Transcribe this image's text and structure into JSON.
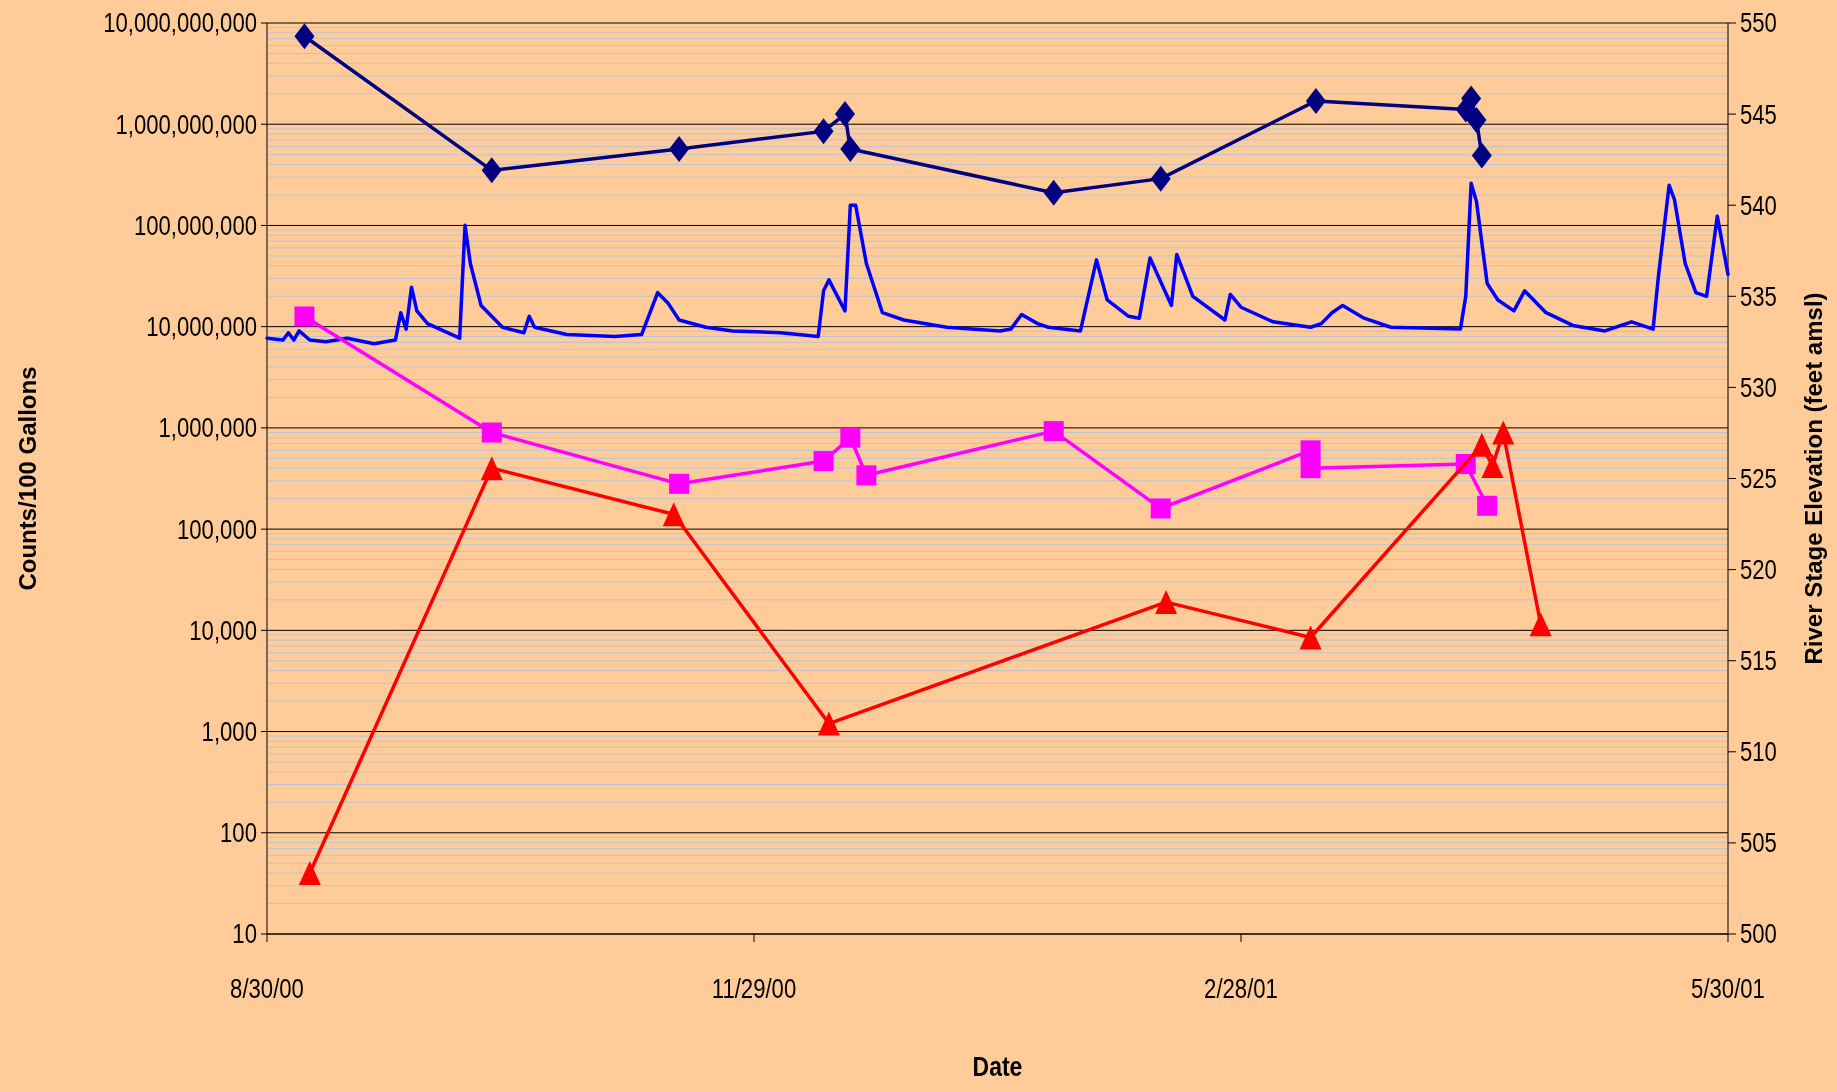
{
  "chart_data": {
    "type": "line",
    "xlabel": "Date",
    "ylabel": "Counts/100 Gallons",
    "y2label": "River Stage Elevation (feet amsl)",
    "log": "y",
    "grid": true,
    "xlim": [
      "2000-08-30",
      "2001-05-30"
    ],
    "xticks": [
      {
        "value": "2000-08-30",
        "label": "8/30/00"
      },
      {
        "value": "2000-11-29",
        "label": "11/29/00"
      },
      {
        "value": "2001-02-28",
        "label": "2/28/01"
      },
      {
        "value": "2001-05-30",
        "label": "5/30/01"
      }
    ],
    "ylim": [
      10,
      10000000000
    ],
    "yticks": [
      10,
      100,
      {
        "value": 1000,
        "label": "1,000"
      },
      {
        "value": 10000,
        "label": "10,000"
      },
      {
        "value": 100000,
        "label": "100,000"
      },
      {
        "value": 1000000,
        "label": "1,000,000"
      },
      {
        "value": 10000000,
        "label": "10,000,000"
      },
      {
        "value": 100000000,
        "label": "100,000,000"
      },
      {
        "value": 1000000000,
        "label": "1,000,000,000"
      },
      {
        "value": 10000000000,
        "label": "10,000,000,000"
      }
    ],
    "y2lim": [
      500,
      550
    ],
    "y2ticks": [
      500,
      505,
      510,
      515,
      520,
      525,
      530,
      535,
      540,
      545,
      550
    ],
    "series": [
      {
        "color": "#0000ff",
        "axis": "y2",
        "marker": "none",
        "x": [
          "2000-08-30",
          "2000-09-02",
          "2000-09-03",
          "2000-09-04",
          "2000-09-05",
          "2000-09-07",
          "2000-09-10",
          "2000-09-14",
          "2000-09-19",
          "2000-09-23",
          "2000-09-24",
          "2000-09-25",
          "2000-09-26",
          "2000-09-27",
          "2000-09-29",
          "2000-10-02",
          "2000-10-05",
          "2000-10-06",
          "2000-10-07",
          "2000-10-09",
          "2000-10-13",
          "2000-10-17",
          "2000-10-18",
          "2000-10-19",
          "2000-10-25",
          "2000-11-03",
          "2000-11-08",
          "2000-11-11",
          "2000-11-13",
          "2000-11-15",
          "2000-11-20",
          "2000-11-25",
          "2000-12-04",
          "2000-12-11",
          "2000-12-12",
          "2000-12-13",
          "2000-12-16",
          "2000-12-17",
          "2000-12-18",
          "2000-12-20",
          "2000-12-23",
          "2000-12-27",
          "2001-01-04",
          "2001-01-14",
          "2001-01-16",
          "2001-01-18",
          "2001-01-21",
          "2001-01-23",
          "2001-01-29",
          "2001-02-01",
          "2001-02-03",
          "2001-02-07",
          "2001-02-09",
          "2001-02-11",
          "2001-02-15",
          "2001-02-16",
          "2001-02-19",
          "2001-02-25",
          "2001-02-26",
          "2001-02-28",
          "2001-03-06",
          "2001-03-13",
          "2001-03-15",
          "2001-03-17",
          "2001-03-19",
          "2001-03-23",
          "2001-03-28",
          "2001-04-10",
          "2001-04-11",
          "2001-04-12",
          "2001-04-13",
          "2001-04-15",
          "2001-04-17",
          "2001-04-20",
          "2001-04-22",
          "2001-04-26",
          "2001-05-01",
          "2001-05-07",
          "2001-05-12",
          "2001-05-16",
          "2001-05-17",
          "2001-05-19",
          "2001-05-20",
          "2001-05-22",
          "2001-05-24",
          "2001-05-26",
          "2001-05-28",
          "2001-05-30"
        ],
        "values": [
          532.7,
          532.6,
          533.0,
          532.6,
          533.1,
          532.6,
          532.5,
          532.7,
          532.4,
          532.6,
          534.1,
          533.2,
          535.5,
          534.2,
          533.5,
          533.1,
          532.7,
          538.9,
          536.8,
          534.5,
          533.3,
          533.0,
          533.9,
          533.3,
          532.9,
          532.8,
          532.9,
          535.2,
          534.6,
          533.7,
          533.3,
          533.1,
          533.0,
          532.8,
          535.3,
          535.9,
          534.2,
          540.0,
          540.0,
          536.8,
          534.1,
          533.7,
          533.3,
          533.1,
          533.2,
          534.0,
          533.5,
          533.3,
          533.1,
          537.0,
          534.8,
          533.9,
          533.8,
          537.1,
          534.5,
          537.3,
          535.0,
          533.7,
          535.1,
          534.4,
          533.6,
          533.3,
          533.5,
          534.1,
          534.5,
          533.8,
          533.3,
          533.2,
          535.0,
          541.2,
          540.2,
          535.7,
          534.8,
          534.2,
          535.3,
          534.1,
          533.4,
          533.1,
          533.6,
          533.2,
          536.1,
          541.1,
          540.3,
          536.8,
          535.2,
          535.0,
          539.4,
          536.2
        ]
      },
      {
        "color": "#000080",
        "marker": "diamond",
        "x": [
          "2000-09-06",
          "2000-10-11",
          "2000-11-15",
          "2000-12-12",
          "2000-12-16",
          "2000-12-17",
          "2001-01-24",
          "2001-02-13",
          "2001-03-14",
          "2001-04-11",
          "2001-04-12",
          "2001-04-13",
          "2001-04-14"
        ],
        "values": [
          7400000000,
          350000000,
          570000000,
          850000000,
          1260000000,
          570000000,
          210000000,
          290000000,
          1700000000,
          1400000000,
          1800000000,
          1100000000,
          490000000
        ]
      },
      {
        "color": "#ff00ff",
        "marker": "square",
        "x": [
          "2000-09-06",
          "2000-10-11",
          "2000-11-15",
          "2000-12-12",
          "2000-12-17",
          "2000-12-20",
          "2001-01-24",
          "2001-02-13",
          "2001-03-13",
          "2001-03-13",
          "2001-04-11",
          "2001-04-15"
        ],
        "values": [
          12600000,
          900000,
          280000,
          470000,
          800000,
          340000,
          930000,
          160000,
          600000,
          400000,
          440000,
          170000
        ]
      },
      {
        "color": "#ff0000",
        "marker": "triangle",
        "x": [
          "2000-09-07",
          "2000-10-11",
          "2000-11-14",
          "2000-12-13",
          "2001-02-14",
          "2001-03-13",
          "2001-04-14",
          "2001-04-16",
          "2001-04-18",
          "2001-04-25"
        ],
        "values": [
          40,
          400000,
          140000,
          1200,
          19000,
          8500,
          680000,
          420000,
          900000,
          11500
        ]
      }
    ]
  }
}
